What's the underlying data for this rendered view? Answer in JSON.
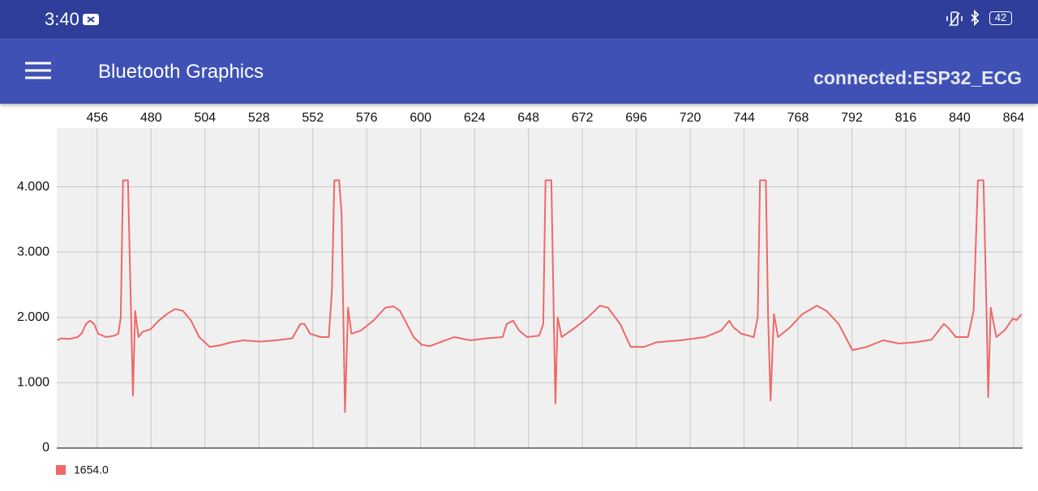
{
  "status_bar": {
    "time": "3:40",
    "battery": "42"
  },
  "app_bar": {
    "title": "Bluetooth Graphics",
    "status": "connected:ESP32_ECG"
  },
  "chart_data": {
    "type": "line",
    "x": [
      438.3,
      440.1,
      443.7,
      447.4,
      449.2,
      451.0,
      452.8,
      454.6,
      456.4,
      460.0,
      463.6,
      465.4,
      466.5,
      467.5,
      469.7,
      470.8,
      471.9,
      472.9,
      474.4,
      476.2,
      479.8,
      483.4,
      487.0,
      490.6,
      494.2,
      497.8,
      501.4,
      506.1,
      510.4,
      515.8,
      521.2,
      528.4,
      535.6,
      542.8,
      546.5,
      548.3,
      550.8,
      555.5,
      559.1,
      560.5,
      561.6,
      563.7,
      564.8,
      566.3,
      567.7,
      569.2,
      573.5,
      578.9,
      584.3,
      587.9,
      590.8,
      596.9,
      600.5,
      604.1,
      609.5,
      614.9,
      622.1,
      629.3,
      636.5,
      638.3,
      641.2,
      643.8,
      647.4,
      652.8,
      654.6,
      655.6,
      658.2,
      659.3,
      660.0,
      661.0,
      662.8,
      669.0,
      674.4,
      679.8,
      683.4,
      688.8,
      693.5,
      699.6,
      705.0,
      715.8,
      726.6,
      733.8,
      737.4,
      739.2,
      742.8,
      748.3,
      750.1,
      751.1,
      753.7,
      754.7,
      755.8,
      757.3,
      759.1,
      764.5,
      769.9,
      776.4,
      780.7,
      786.1,
      792.2,
      798.7,
      805.9,
      813.1,
      820.3,
      827.5,
      832.9,
      834.7,
      838.3,
      843.7,
      846.2,
      848.1,
      850.6,
      852.0,
      852.7,
      853.8,
      856.3,
      859.9,
      863.6,
      865.4,
      867.5
    ],
    "series": [
      {
        "name": "1654.0",
        "color": "#ef6868",
        "values": [
          1650,
          1680,
          1670,
          1700,
          1760,
          1900,
          1950,
          1900,
          1750,
          1700,
          1720,
          1750,
          2000,
          4100,
          4100,
          2500,
          800,
          2100,
          1700,
          1780,
          1820,
          1950,
          2050,
          2130,
          2100,
          1950,
          1700,
          1550,
          1570,
          1620,
          1650,
          1630,
          1650,
          1680,
          1900,
          1900,
          1750,
          1700,
          1700,
          2400,
          4100,
          4100,
          3600,
          550,
          2150,
          1750,
          1800,
          1950,
          2150,
          2170,
          2100,
          1700,
          1580,
          1560,
          1630,
          1700,
          1650,
          1680,
          1700,
          1900,
          1950,
          1800,
          1700,
          1720,
          1900,
          4100,
          4100,
          2000,
          680,
          2000,
          1700,
          1850,
          2000,
          2180,
          2150,
          1900,
          1550,
          1550,
          1620,
          1650,
          1700,
          1800,
          1950,
          1850,
          1750,
          1700,
          2000,
          4100,
          4100,
          2000,
          730,
          2050,
          1700,
          1850,
          2050,
          2180,
          2100,
          1900,
          1500,
          1550,
          1650,
          1600,
          1620,
          1660,
          1900,
          1850,
          1700,
          1700,
          2100,
          4100,
          4100,
          2000,
          780,
          2150,
          1700,
          1800,
          1980,
          1960,
          2050
        ]
      }
    ],
    "xlim": [
      438,
      868
    ],
    "xticks": [
      456,
      480,
      504,
      528,
      552,
      576,
      600,
      624,
      648,
      672,
      696,
      720,
      744,
      768,
      792,
      816,
      840,
      864
    ],
    "ylim": [
      0,
      4900
    ],
    "yticks": [
      0,
      {
        "value": 1000,
        "label": "1.000"
      },
      {
        "value": 2000,
        "label": "2.000"
      },
      {
        "value": 3000,
        "label": "3.000"
      },
      {
        "value": 4000,
        "label": "4.000"
      }
    ],
    "grid": true,
    "x_axis_position": "top",
    "legend": "bottom-left"
  }
}
